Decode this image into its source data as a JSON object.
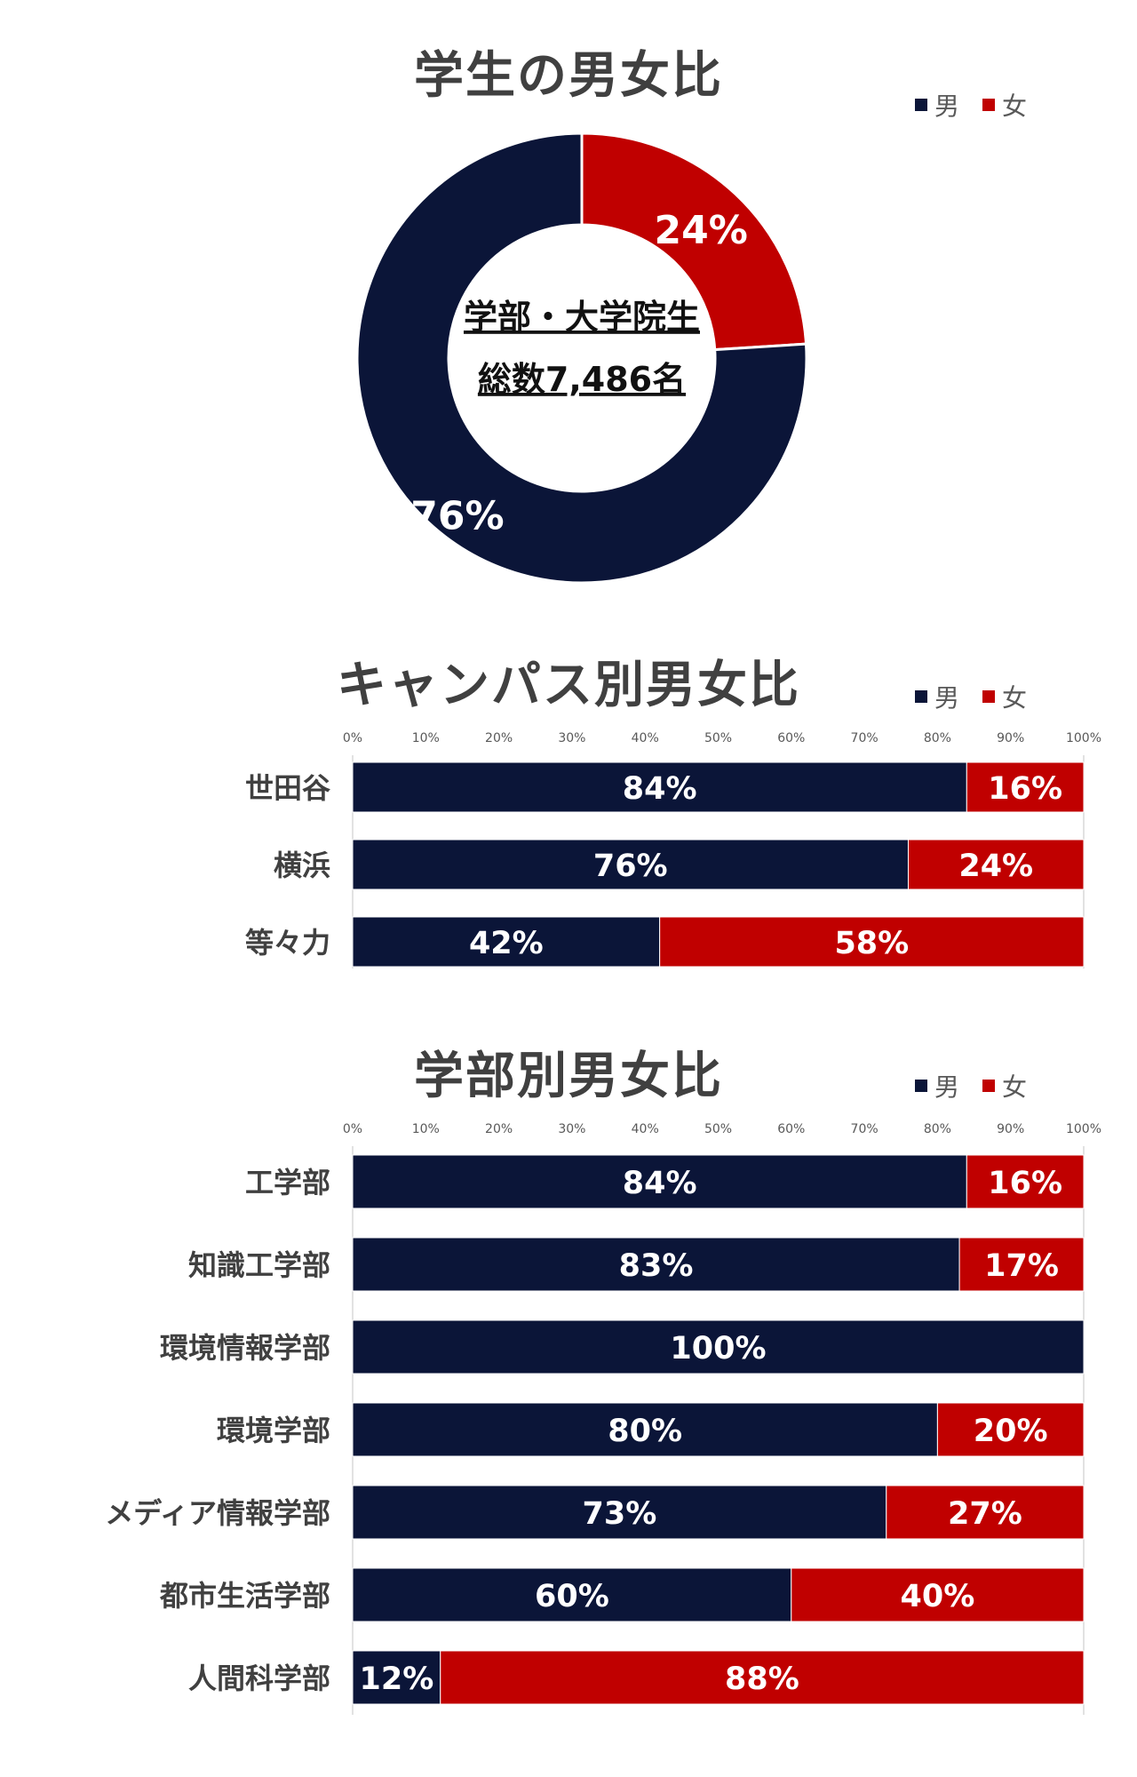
{
  "colors": {
    "male": "#0b1538",
    "female": "#c00000",
    "axis": "#d9d9d9",
    "label": "#404040",
    "tick": "#595959"
  },
  "legend": {
    "male": "男",
    "female": "女"
  },
  "chart_data": [
    {
      "type": "pie",
      "variant": "donut",
      "title": "学生の男女比",
      "center_text": [
        "学部・大学院生",
        "総数7,486名"
      ],
      "slices": [
        {
          "name": "女",
          "value": 24,
          "label": "24%"
        },
        {
          "name": "男",
          "value": 76,
          "label": "76%"
        }
      ],
      "legend_position": "top-right"
    },
    {
      "type": "bar",
      "orientation": "horizontal",
      "stacked": true,
      "title": "キャンパス別男女比",
      "categories": [
        "世田谷",
        "横浜",
        "等々力"
      ],
      "series": [
        {
          "name": "男",
          "values": [
            84,
            76,
            42
          ]
        },
        {
          "name": "女",
          "values": [
            16,
            24,
            58
          ]
        }
      ],
      "xlim": [
        0,
        100
      ],
      "ticks": [
        "0%",
        "10%",
        "20%",
        "30%",
        "40%",
        "50%",
        "60%",
        "70%",
        "80%",
        "90%",
        "100%"
      ],
      "legend_position": "top-right"
    },
    {
      "type": "bar",
      "orientation": "horizontal",
      "stacked": true,
      "title": "学部別男女比",
      "categories": [
        "工学部",
        "知識工学部",
        "環境情報学部",
        "環境学部",
        "メディア情報学部",
        "都市生活学部",
        "人間科学部"
      ],
      "series": [
        {
          "name": "男",
          "values": [
            84,
            83,
            100,
            80,
            73,
            60,
            12
          ]
        },
        {
          "name": "女",
          "values": [
            16,
            17,
            0,
            20,
            27,
            40,
            88
          ]
        }
      ],
      "xlim": [
        0,
        100
      ],
      "ticks": [
        "0%",
        "10%",
        "20%",
        "30%",
        "40%",
        "50%",
        "60%",
        "70%",
        "80%",
        "90%",
        "100%"
      ],
      "legend_position": "top-right"
    }
  ]
}
